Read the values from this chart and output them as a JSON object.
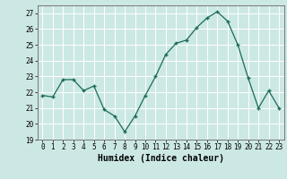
{
  "x": [
    0,
    1,
    2,
    3,
    4,
    5,
    6,
    7,
    8,
    9,
    10,
    11,
    12,
    13,
    14,
    15,
    16,
    17,
    18,
    19,
    20,
    21,
    22,
    23
  ],
  "y": [
    21.8,
    21.7,
    22.8,
    22.8,
    22.1,
    22.4,
    20.9,
    20.5,
    19.5,
    20.5,
    21.8,
    23.0,
    24.4,
    25.1,
    25.3,
    26.1,
    26.7,
    27.1,
    26.5,
    25.0,
    22.9,
    21.0,
    22.1,
    21.0
  ],
  "xlim": [
    -0.5,
    23.5
  ],
  "ylim": [
    19,
    27.5
  ],
  "yticks": [
    19,
    20,
    21,
    22,
    23,
    24,
    25,
    26,
    27
  ],
  "xticks": [
    0,
    1,
    2,
    3,
    4,
    5,
    6,
    7,
    8,
    9,
    10,
    11,
    12,
    13,
    14,
    15,
    16,
    17,
    18,
    19,
    20,
    21,
    22,
    23
  ],
  "xlabel": "Humidex (Indice chaleur)",
  "line_color": "#1a6b5a",
  "marker": "+",
  "marker_size": 3,
  "bg_color": "#cce8e4",
  "grid_color": "#ffffff",
  "tick_fontsize": 5.5,
  "xlabel_fontsize": 7.0
}
